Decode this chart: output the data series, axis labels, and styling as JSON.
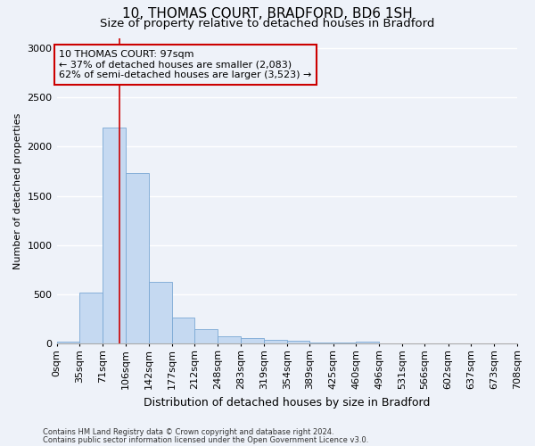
{
  "title1": "10, THOMAS COURT, BRADFORD, BD6 1SH",
  "title2": "Size of property relative to detached houses in Bradford",
  "xlabel": "Distribution of detached houses by size in Bradford",
  "ylabel": "Number of detached properties",
  "footnote1": "Contains HM Land Registry data © Crown copyright and database right 2024.",
  "footnote2": "Contains public sector information licensed under the Open Government Licence v3.0.",
  "annotation_line1": "10 THOMAS COURT: 97sqm",
  "annotation_line2": "← 37% of detached houses are smaller (2,083)",
  "annotation_line3": "62% of semi-detached houses are larger (3,523) →",
  "property_size": 97,
  "bin_edges": [
    0,
    35,
    71,
    106,
    142,
    177,
    212,
    248,
    283,
    319,
    354,
    389,
    425,
    460,
    496,
    531,
    566,
    602,
    637,
    673,
    708
  ],
  "bar_heights": [
    25,
    520,
    2190,
    1730,
    630,
    270,
    145,
    80,
    55,
    40,
    30,
    15,
    10,
    20,
    5,
    5,
    2,
    2,
    2,
    2
  ],
  "bar_color": "#c5d9f1",
  "bar_edge_color": "#7aa8d4",
  "vline_color": "#cc0000",
  "vline_x": 97,
  "ylim": [
    0,
    3100
  ],
  "yticks": [
    0,
    500,
    1000,
    1500,
    2000,
    2500,
    3000
  ],
  "annotation_box_color": "#cc0000",
  "bg_color": "#eef2f9",
  "title1_fontsize": 11,
  "title2_fontsize": 9.5,
  "ylabel_fontsize": 8,
  "xlabel_fontsize": 9,
  "tick_fontsize": 8,
  "annot_fontsize": 8
}
